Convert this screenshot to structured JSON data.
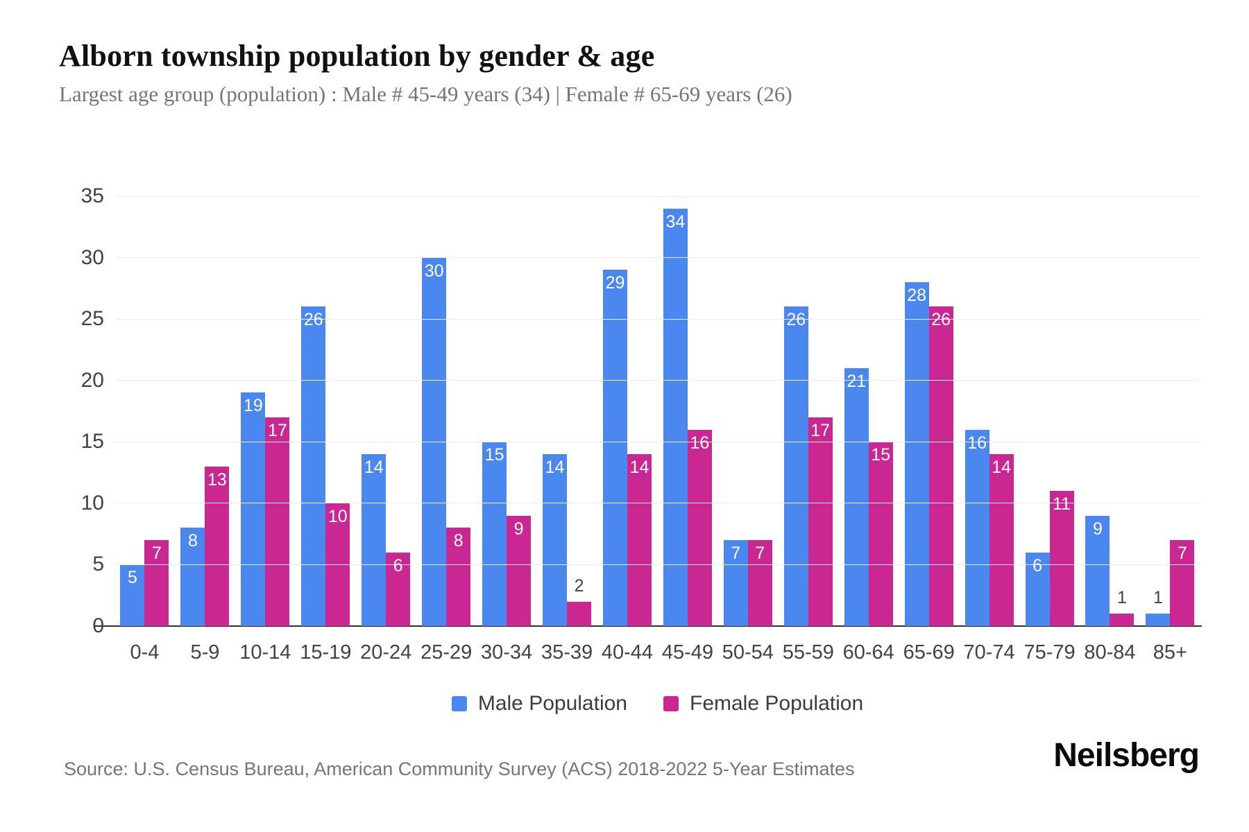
{
  "header": {
    "title": "Alborn township population by gender & age",
    "subtitle": "Largest age group (population) : Male # 45-49 years (34) | Female # 65-69 years (26)"
  },
  "chart_data": {
    "type": "bar",
    "title": "Alborn township population by gender & age",
    "categories": [
      "0-4",
      "5-9",
      "10-14",
      "15-19",
      "20-24",
      "25-29",
      "30-34",
      "35-39",
      "40-44",
      "45-49",
      "50-54",
      "55-59",
      "60-64",
      "65-69",
      "70-74",
      "75-79",
      "80-84",
      "85+"
    ],
    "series": [
      {
        "name": "Male Population",
        "color": "#4A87EE",
        "values": [
          5,
          8,
          19,
          26,
          14,
          30,
          15,
          14,
          29,
          34,
          7,
          26,
          21,
          28,
          16,
          6,
          9,
          1
        ]
      },
      {
        "name": "Female Population",
        "color": "#CA2792",
        "values": [
          7,
          13,
          17,
          10,
          6,
          8,
          9,
          2,
          14,
          16,
          7,
          17,
          15,
          26,
          14,
          11,
          1,
          7
        ]
      }
    ],
    "xlabel": "",
    "ylabel": "",
    "ylim": [
      0,
      35
    ],
    "yticks": [
      0,
      5,
      10,
      15,
      20,
      25,
      30,
      35
    ],
    "grid": true,
    "legend_position": "bottom",
    "value_labels": true,
    "inside_label_threshold": 5,
    "colors": {
      "grid": "#efefef",
      "axis": "#2f2f2f",
      "tick_text": "#424242",
      "label_in": "#ffffff",
      "label_out": "#424242"
    }
  },
  "footer": {
    "source": "Source: U.S. Census Bureau, American Community Survey (ACS) 2018-2022 5-Year Estimates",
    "brand": "Neilsberg"
  }
}
